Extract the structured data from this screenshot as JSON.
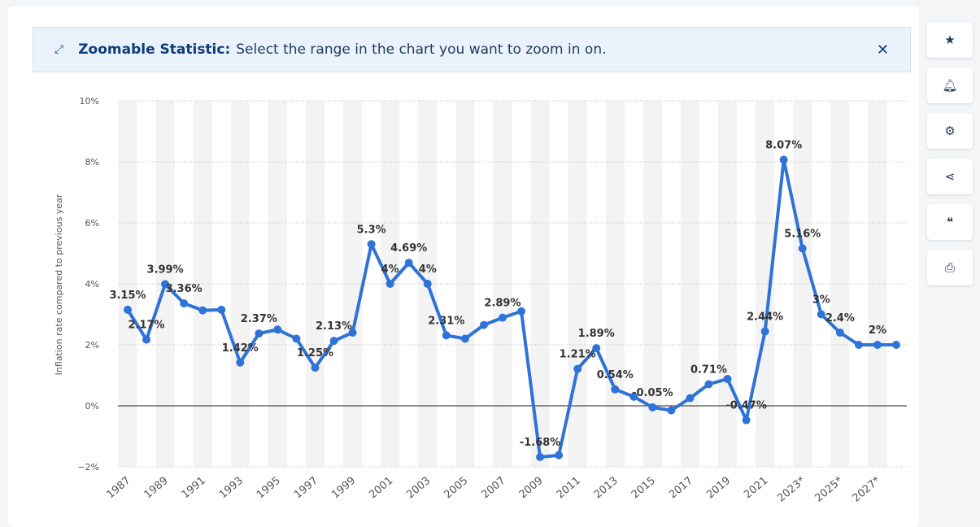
{
  "banner": {
    "title": "Zoomable Statistic:",
    "text": "Select the range in the chart you want to zoom in on."
  },
  "chart_data": {
    "type": "line",
    "y_label": "Inflation rate compared to previous year",
    "categories": [
      "1987",
      null,
      "1989",
      null,
      "1991",
      null,
      "1993",
      null,
      "1995",
      null,
      "1997",
      null,
      "1999",
      null,
      "2001",
      null,
      "2003",
      null,
      "2005",
      null,
      "2007",
      null,
      "2009",
      null,
      "2011",
      null,
      "2013",
      null,
      "2015",
      null,
      "2017",
      null,
      "2019",
      null,
      "2021",
      null,
      "2023*",
      null,
      "2025*",
      null,
      "2027*",
      null
    ],
    "series": [
      {
        "name": "Inflation rate",
        "color": "#2f73d8",
        "values": [
          3.15,
          2.17,
          3.99,
          3.36,
          3.13,
          3.15,
          1.42,
          2.37,
          2.5,
          2.2,
          1.25,
          2.13,
          2.4,
          5.3,
          4,
          4.69,
          4,
          2.31,
          2.2,
          2.65,
          2.89,
          3.1,
          -1.68,
          -1.62,
          1.21,
          1.89,
          0.54,
          0.3,
          -0.05,
          -0.15,
          0.25,
          0.71,
          0.88,
          -0.47,
          2.44,
          8.07,
          5.16,
          3,
          2.4,
          2,
          2,
          2
        ],
        "value_labels": [
          "3.15%",
          "2.17%",
          "3.99%",
          "3.36%",
          null,
          null,
          "1.42%",
          "2.37%",
          null,
          null,
          "1.25%",
          "2.13%",
          null,
          "5.3%",
          "4%",
          "4.69%",
          "4%",
          "2.31%",
          null,
          null,
          "2.89%",
          null,
          "-1.68%",
          null,
          "1.21%",
          "1.89%",
          "0.54%",
          null,
          "-0.05%",
          null,
          null,
          "0.71%",
          null,
          "-0.47%",
          "2.44%",
          "8.07%",
          "5.16%",
          "3%",
          "2.4%",
          null,
          "2%",
          null
        ]
      }
    ],
    "ylim": [
      -2,
      10
    ],
    "yticks": [
      {
        "value": -2,
        "label": "−2%"
      },
      {
        "value": 0,
        "label": "0%"
      },
      {
        "value": 2,
        "label": "2%"
      },
      {
        "value": 4,
        "label": "4%"
      },
      {
        "value": 6,
        "label": "6%"
      },
      {
        "value": 8,
        "label": "8%"
      },
      {
        "value": 10,
        "label": "10%"
      }
    ],
    "grid": true
  }
}
